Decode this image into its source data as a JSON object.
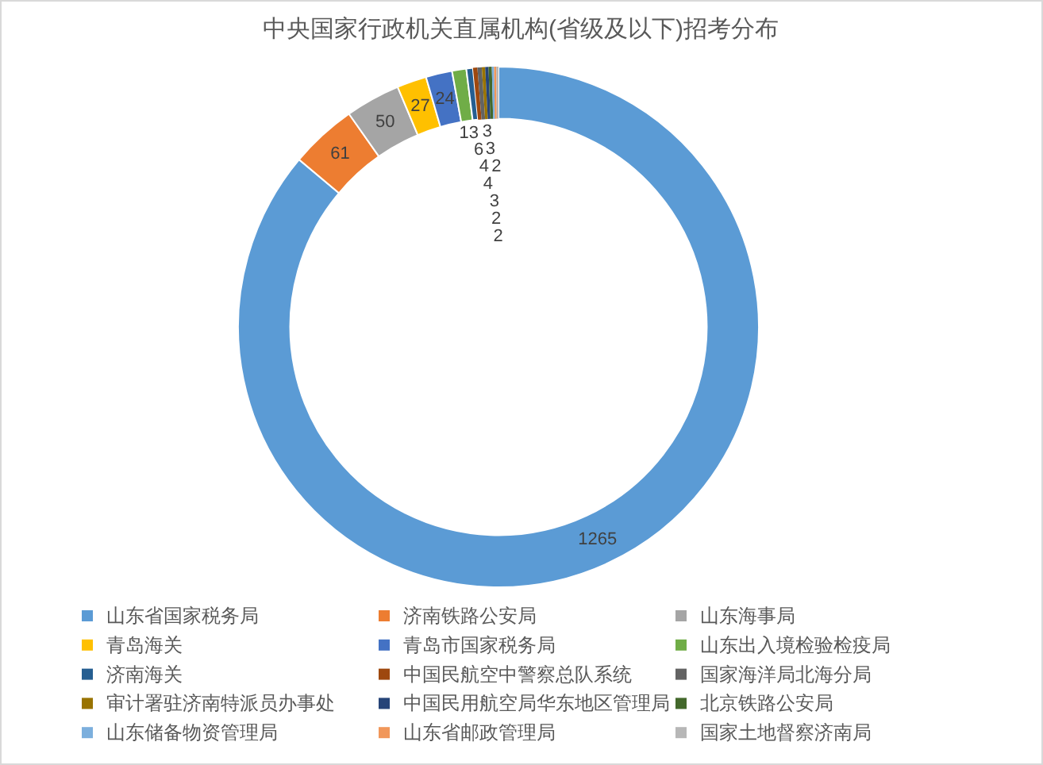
{
  "chart_data": {
    "type": "donut",
    "title": "中央国家行政机关直属机构(省级及以下)招考分布",
    "categories": [
      "山东省国家税务局",
      "济南铁路公安局",
      "山东海事局",
      "青岛海关",
      "青岛市国家税务局",
      "山东出入境检验检疫局",
      "济南海关",
      "中国民航空中警察总队系统",
      "国家海洋局北海分局",
      "审计署驻济南特派员办事处",
      "中国民用航空局华东地区管理局",
      "北京铁路公安局",
      "山东储备物资管理局",
      "山东省邮政管理局",
      "国家土地督察济南局"
    ],
    "values": [
      1265,
      61,
      50,
      27,
      24,
      13,
      6,
      4,
      4,
      3,
      3,
      3,
      2,
      2,
      2
    ],
    "colors": [
      "#5b9bd5",
      "#ed7d31",
      "#a5a5a5",
      "#ffc000",
      "#4472c4",
      "#70ad47",
      "#255e91",
      "#9e480e",
      "#636363",
      "#997300",
      "#264478",
      "#43682b",
      "#7cafdd",
      "#f1975a",
      "#b7b7b7"
    ],
    "data_labels": true,
    "legend": "bottom"
  }
}
